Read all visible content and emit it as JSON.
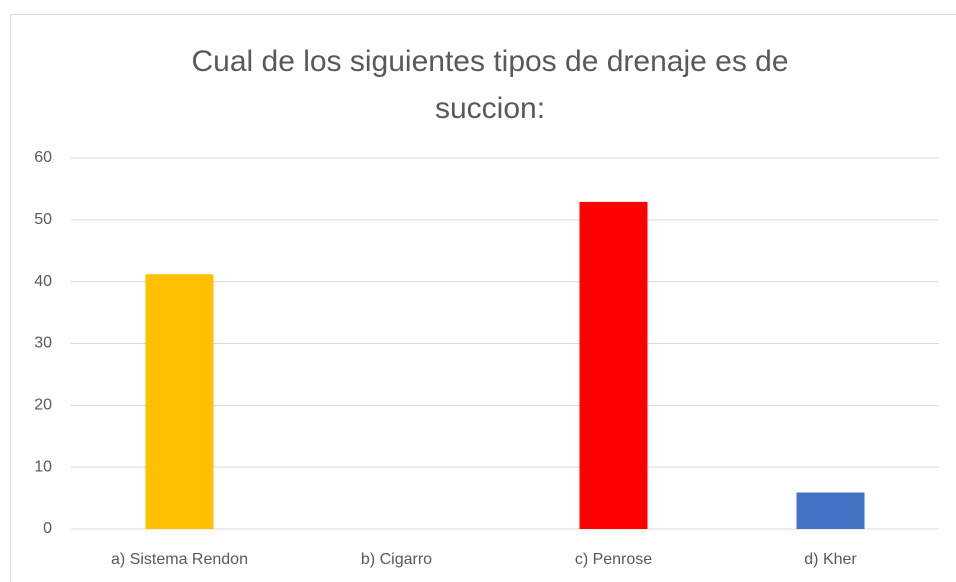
{
  "chart_data": {
    "type": "bar",
    "title": "Cual de los siguientes tipos de drenaje es de succion:",
    "categories": [
      "a) Sistema Rendon",
      "b) Cigarro",
      "c) Penrose",
      "d) Kher"
    ],
    "values": [
      41.2,
      0,
      52.9,
      5.9
    ],
    "colors": [
      "#ffc000",
      "#a5a5a5",
      "#ff0000",
      "#4472c4"
    ],
    "ylim": [
      0,
      60
    ],
    "yticks": [
      0,
      10,
      20,
      30,
      40,
      50,
      60
    ],
    "grid": true
  }
}
